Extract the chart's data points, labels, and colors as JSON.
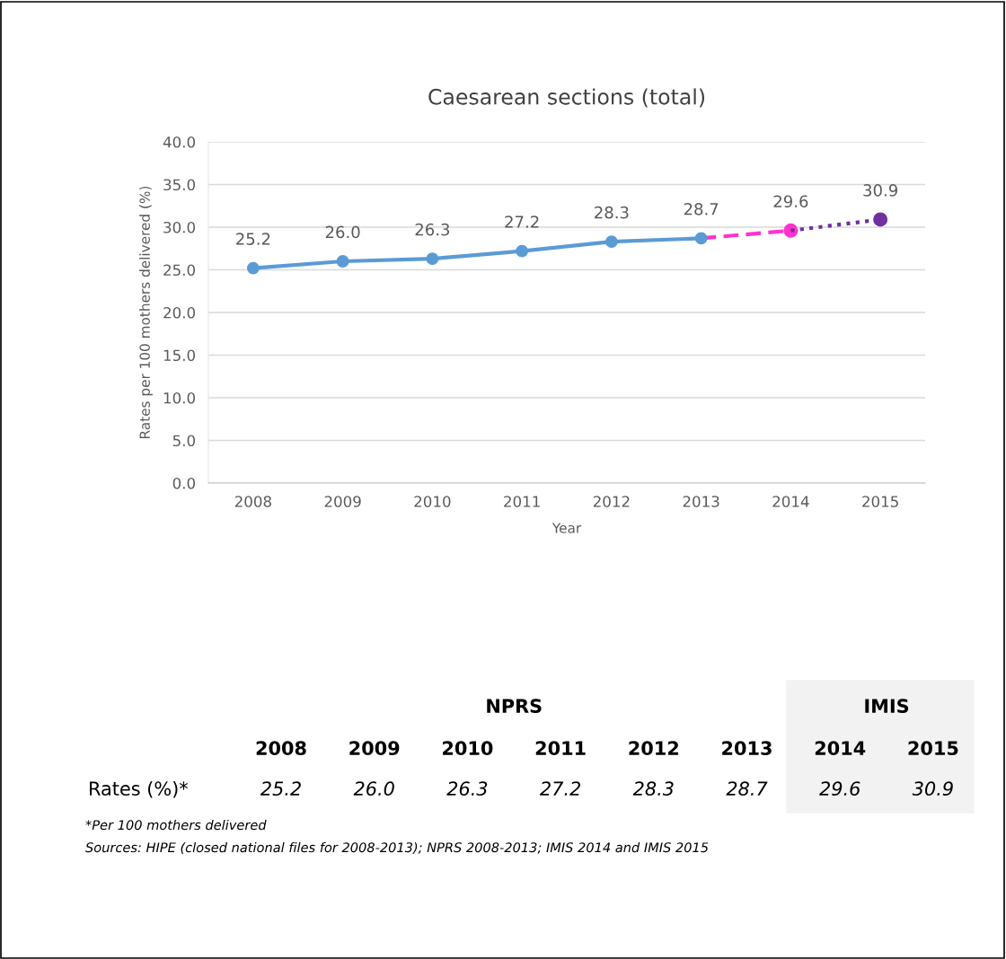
{
  "chart_data": {
    "type": "line",
    "title": "Caesarean sections (total)",
    "xlabel": "Year",
    "ylabel": "Rates per 100 mothers delivered (%)",
    "xlim": [
      2007.5,
      2015.5
    ],
    "xticks": [
      2008,
      2009,
      2010,
      2011,
      2012,
      2013,
      2014,
      2015
    ],
    "ylim": [
      0,
      40
    ],
    "yticks": [
      {
        "value": 0,
        "label": "0.0"
      },
      {
        "value": 5,
        "label": "5.0"
      },
      {
        "value": 10,
        "label": "10.0"
      },
      {
        "value": 15,
        "label": "15.0"
      },
      {
        "value": 20,
        "label": "20.0"
      },
      {
        "value": 25,
        "label": "25.0"
      },
      {
        "value": 30,
        "label": "30.0"
      },
      {
        "value": 35,
        "label": "35.0"
      },
      {
        "value": 40,
        "label": "40.0"
      }
    ],
    "grid": "y",
    "legend": false,
    "series": [
      {
        "color": "#5b9bd5",
        "marker": "circle",
        "line_style": "solid",
        "x": [
          2008,
          2009,
          2010,
          2011,
          2012,
          2013
        ],
        "values": [
          25.2,
          26.0,
          26.3,
          27.2,
          28.3,
          28.7
        ],
        "value_labels": [
          "25.2",
          "26.0",
          "26.3",
          "27.2",
          "28.3",
          "28.7"
        ]
      },
      {
        "type": "line",
        "color": "#ff33cc",
        "line_style": "dashed",
        "x": [
          2013,
          2014
        ],
        "values": [
          28.7,
          29.6
        ]
      },
      {
        "type": "scatter",
        "color": "#ff33cc",
        "marker": "circle",
        "x": [
          2014
        ],
        "values": [
          29.6
        ],
        "value_labels": [
          "29.6"
        ]
      },
      {
        "type": "line",
        "color": "#7030a0",
        "line_style": "dotted",
        "x": [
          2014,
          2015
        ],
        "values": [
          29.6,
          30.9
        ]
      },
      {
        "type": "scatter",
        "color": "#7030a0",
        "marker": "circle",
        "x": [
          2015
        ],
        "values": [
          30.9
        ],
        "value_labels": [
          "30.9"
        ]
      }
    ],
    "annotations": [
      "NPRS",
      "IMIS",
      "2008",
      "2009",
      "2010",
      "2011",
      "2012",
      "2013",
      "2014",
      "2015",
      "Rates (%)*",
      "*Per 100 mothers delivered",
      "Sources: HIPE (closed national files for 2008-2013); NPRS 2008-2013; IMIS 2014 and IMIS 2015"
    ]
  }
}
